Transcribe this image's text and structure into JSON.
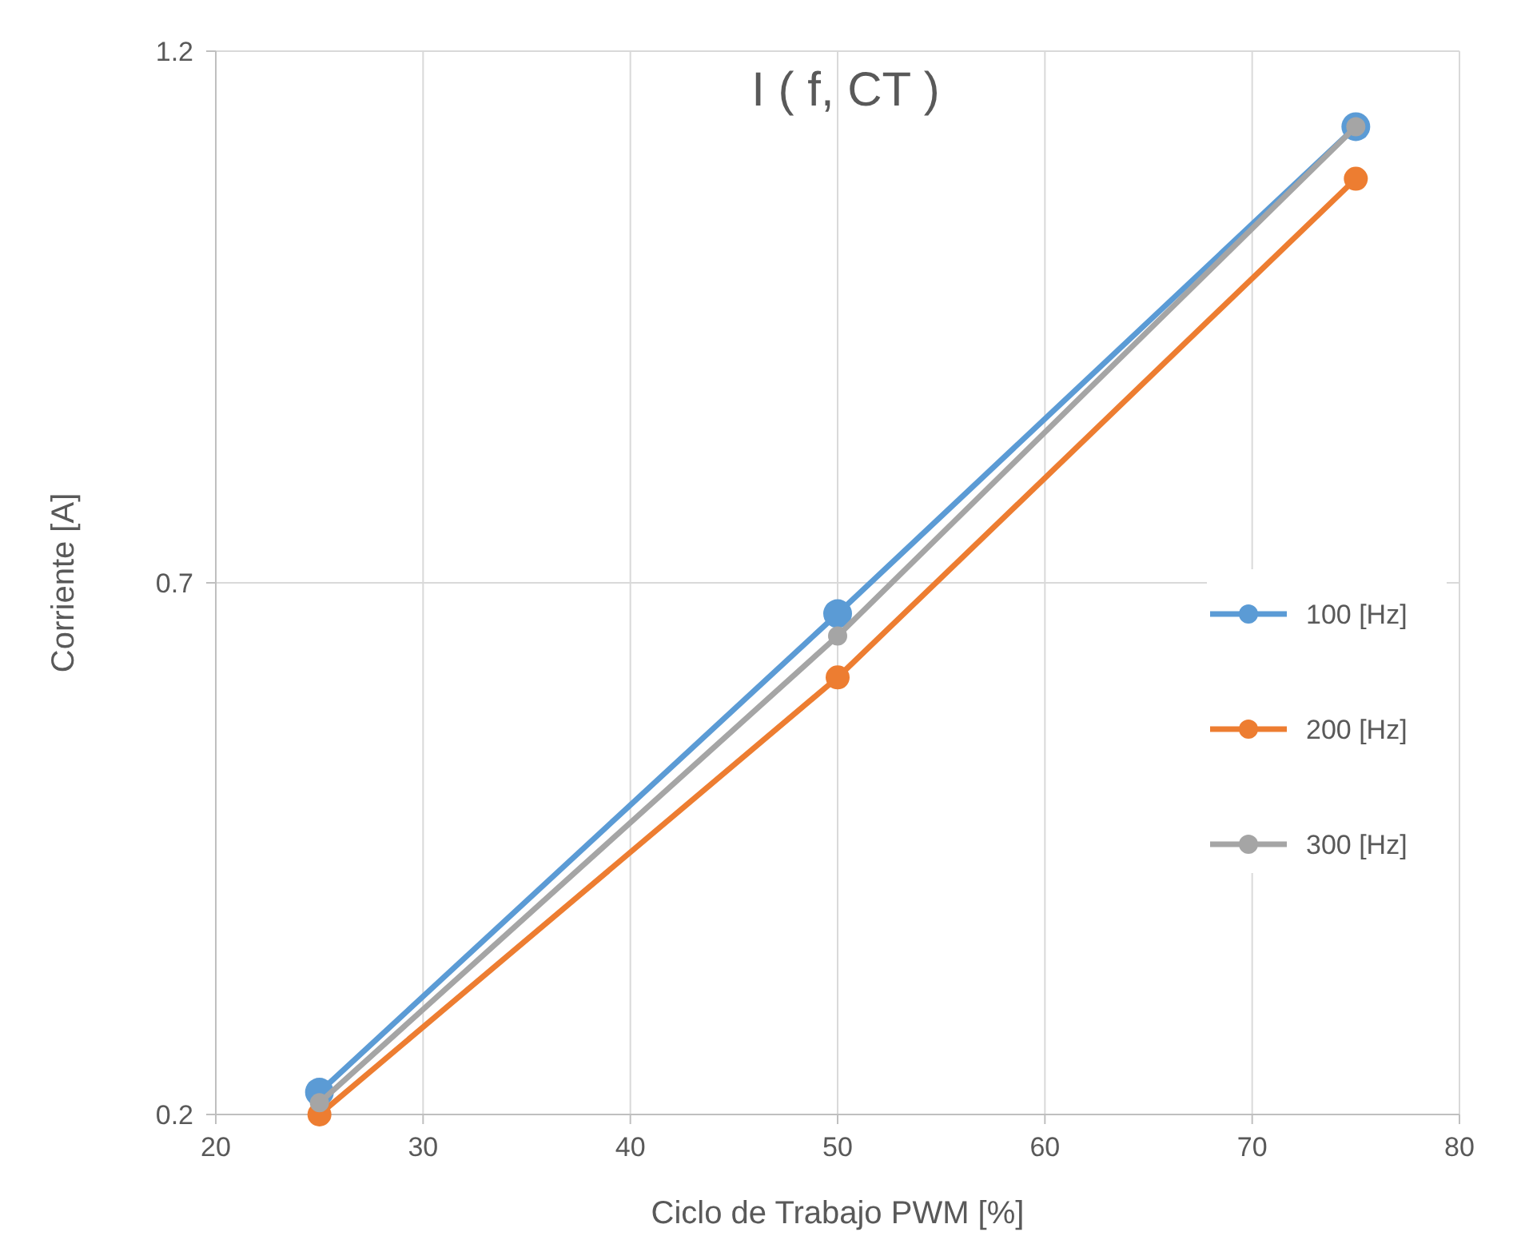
{
  "chart_data": {
    "type": "line",
    "title": "I ( f, CT )",
    "xlabel": "Ciclo de Trabajo PWM [%]",
    "ylabel": "Corriente [A]",
    "x": [
      25,
      50,
      75
    ],
    "series": [
      {
        "name": "100 [Hz]",
        "color": "#5b9bd5",
        "values": [
          0.221,
          0.671,
          1.129
        ]
      },
      {
        "name": "200 [Hz]",
        "color": "#ed7d31",
        "values": [
          0.2,
          0.611,
          1.08
        ]
      },
      {
        "name": "300 [Hz]",
        "color": "#a5a5a5",
        "values": [
          0.211,
          0.65,
          1.129
        ]
      }
    ],
    "xlim": [
      20,
      80
    ],
    "xticks": [
      20,
      30,
      40,
      50,
      60,
      70,
      80
    ],
    "ylim": [
      0.2,
      1.2
    ],
    "yticks": [
      0.2,
      0.7,
      1.2
    ],
    "grid": true,
    "legend": "right",
    "marker": "circle",
    "line_style": "solid"
  }
}
